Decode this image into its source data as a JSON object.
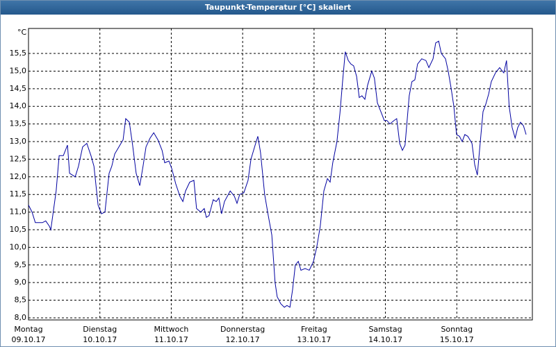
{
  "chart_data": {
    "type": "line",
    "title": "Taupunkt-Temperatur [°C] skaliert",
    "y_unit": "°C",
    "xlim": [
      0,
      169.4
    ],
    "ylim": [
      7.94,
      16.21
    ],
    "xticks": [
      {
        "value": 0,
        "label": "Montag",
        "sublabel": "09.10.17"
      },
      {
        "value": 24,
        "label": "Dienstag",
        "sublabel": "10.10.17"
      },
      {
        "value": 48,
        "label": "Mittwoch",
        "sublabel": "11.10.17"
      },
      {
        "value": 72,
        "label": "Donnerstag",
        "sublabel": "12.10.17"
      },
      {
        "value": 96,
        "label": "Freitag",
        "sublabel": "13.10.17"
      },
      {
        "value": 120,
        "label": "Samstag",
        "sublabel": "14.10.17"
      },
      {
        "value": 144,
        "label": "Sonntag",
        "sublabel": "15.10.17"
      }
    ],
    "yticks": [
      {
        "value": 8,
        "label": "8,0"
      },
      {
        "value": 8.5,
        "label": "8,5"
      },
      {
        "value": 9,
        "label": "9,0"
      },
      {
        "value": 9.5,
        "label": "9,5"
      },
      {
        "value": 10,
        "label": "10,0"
      },
      {
        "value": 10.5,
        "label": "10,5"
      },
      {
        "value": 11,
        "label": "11,0"
      },
      {
        "value": 11.5,
        "label": "11,5"
      },
      {
        "value": 12,
        "label": "12,0"
      },
      {
        "value": 12.5,
        "label": "12,5"
      },
      {
        "value": 13,
        "label": "13,0"
      },
      {
        "value": 13.5,
        "label": "13,5"
      },
      {
        "value": 14,
        "label": "14,0"
      },
      {
        "value": 14.5,
        "label": "14,5"
      },
      {
        "value": 15,
        "label": "15,0"
      },
      {
        "value": 15.5,
        "label": "15,5"
      }
    ],
    "grid": true,
    "series": [
      {
        "color": "#0000a0",
        "x": [
          0,
          1.2,
          2.3,
          4.7,
          5.8,
          7.0,
          7.5,
          9.3,
          10.3,
          11.7,
          13.1,
          13.8,
          15.7,
          16.8,
          18.2,
          19.6,
          21.0,
          22.0,
          23.4,
          24.5,
          25.7,
          27.1,
          28.0,
          29.0,
          30.4,
          31.8,
          32.7,
          33.9,
          35.0,
          36.2,
          37.4,
          38.5,
          39.5,
          40.9,
          42.1,
          43.5,
          44.9,
          45.8,
          47.2,
          48.1,
          49.5,
          50.9,
          51.9,
          52.8,
          54.2,
          55.6,
          56.5,
          57.9,
          59.1,
          59.8,
          60.7,
          62.1,
          63.1,
          64.0,
          64.9,
          65.9,
          67.8,
          69.2,
          70.1,
          71.0,
          72.4,
          73.8,
          74.8,
          76.2,
          77.1,
          78.0,
          79.4,
          80.6,
          81.8,
          82.9,
          83.6,
          84.8,
          86.0,
          86.9,
          87.9,
          88.8,
          89.7,
          90.7,
          91.6,
          93.0,
          94.4,
          95.8,
          96.9,
          98.1,
          99.3,
          100.5,
          101.4,
          102.3,
          103.7,
          104.7,
          105.6,
          106.5,
          107.5,
          108.4,
          109.3,
          110.3,
          111.2,
          112.1,
          113.1,
          114.0,
          115.4,
          116.3,
          117.3,
          118.7,
          119.6,
          120.5,
          121.5,
          122.9,
          123.8,
          124.8,
          125.7,
          126.6,
          128.0,
          128.9,
          129.9,
          130.8,
          132.2,
          133.6,
          134.6,
          136.0,
          136.9,
          137.9,
          138.8,
          140.2,
          141.1,
          142.1,
          143.0,
          143.9,
          144.9,
          145.8,
          146.7,
          147.7,
          149.1,
          150.0,
          150.9,
          151.9,
          152.8,
          153.7,
          154.7,
          155.6,
          157.0,
          158.4,
          159.8,
          160.7,
          161.6,
          162.6,
          163.6,
          164.5,
          165.4,
          166.4,
          167.3
        ],
        "values": [
          11.2,
          11.0,
          10.7,
          10.7,
          10.75,
          10.6,
          10.5,
          11.6,
          12.6,
          12.6,
          12.9,
          12.1,
          12.0,
          12.3,
          12.85,
          12.95,
          12.6,
          12.3,
          11.2,
          10.95,
          11.0,
          12.1,
          12.3,
          12.65,
          12.85,
          13.05,
          13.65,
          13.55,
          12.9,
          12.1,
          11.75,
          12.3,
          12.85,
          13.1,
          13.25,
          13.05,
          12.75,
          12.4,
          12.45,
          12.25,
          11.8,
          11.45,
          11.3,
          11.6,
          11.85,
          11.9,
          11.1,
          11.0,
          11.1,
          10.85,
          10.9,
          11.35,
          11.3,
          11.4,
          10.95,
          11.3,
          11.6,
          11.45,
          11.25,
          11.5,
          11.55,
          11.9,
          12.5,
          12.9,
          13.15,
          12.7,
          11.5,
          10.9,
          10.35,
          9.0,
          8.6,
          8.4,
          8.3,
          8.35,
          8.3,
          8.8,
          9.5,
          9.6,
          9.35,
          9.4,
          9.35,
          9.6,
          10.0,
          10.6,
          11.6,
          11.95,
          11.85,
          12.4,
          13.0,
          13.8,
          14.7,
          15.55,
          15.3,
          15.2,
          15.15,
          14.85,
          14.25,
          14.3,
          14.2,
          14.6,
          15.0,
          14.8,
          14.1,
          13.8,
          13.6,
          13.6,
          13.5,
          13.6,
          13.65,
          12.95,
          12.75,
          12.9,
          14.3,
          14.7,
          14.75,
          15.2,
          15.35,
          15.3,
          15.1,
          15.35,
          15.8,
          15.85,
          15.5,
          15.35,
          15.0,
          14.5,
          14.0,
          13.2,
          13.15,
          13.0,
          13.2,
          13.15,
          12.95,
          12.35,
          12.05,
          13.0,
          13.85,
          14.05,
          14.35,
          14.7,
          14.95,
          15.1,
          14.95,
          15.3,
          14.0,
          13.4,
          13.1,
          13.4,
          13.55,
          13.45,
          13.2
        ]
      }
    ]
  }
}
